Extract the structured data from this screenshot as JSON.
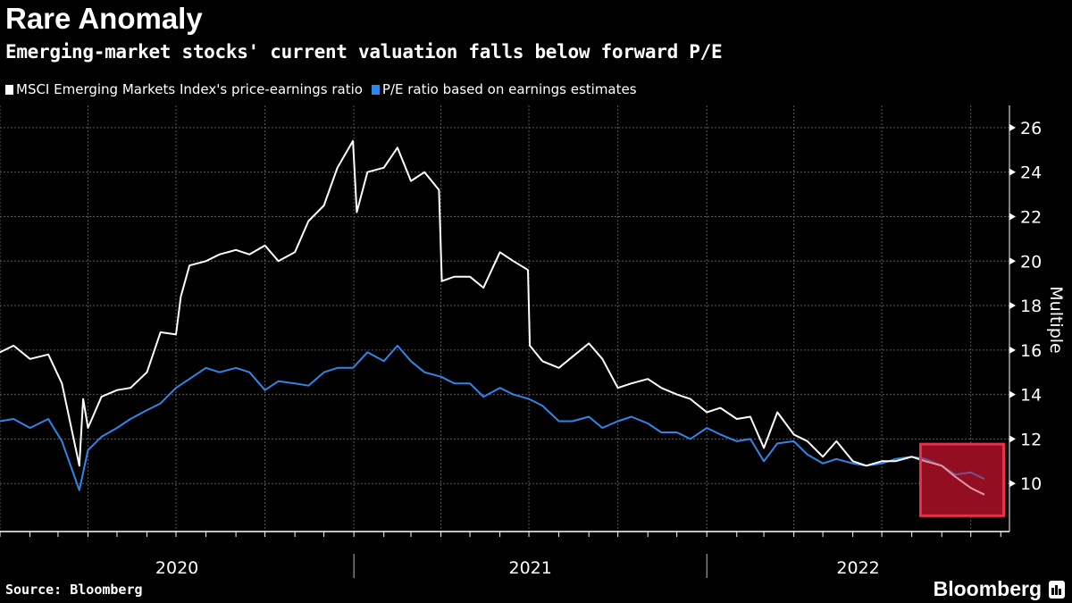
{
  "title": "Rare Anomaly",
  "subtitle": "Emerging-market stocks' current valuation falls below forward P/E",
  "source": "Source: Bloomberg",
  "logo": "Bloomberg",
  "colors": {
    "background": "#000000",
    "trailing": "#ffffff",
    "forward": "#2f86e8",
    "highlight_fill": "#6b0a14",
    "highlight_stroke": "#e8324a",
    "grid": "#666666"
  },
  "chart_data": {
    "type": "line",
    "title": "Rare Anomaly",
    "ylabel": "Multiple",
    "xlabel": "",
    "ylim": [
      8,
      27
    ],
    "xlim": [
      "2020-01-01",
      "2022-11-10"
    ],
    "y_ticks": [
      10,
      12,
      14,
      16,
      18,
      20,
      22,
      24,
      26
    ],
    "x_tick_labels": [
      "2020",
      "2021",
      "2022"
    ],
    "grid": true,
    "legend_placement": "top-left",
    "highlight": {
      "x": [
        "2022-08-10",
        "2022-11-04"
      ],
      "y": [
        8.55,
        11.77
      ]
    },
    "series": [
      {
        "name": "MSCI Emerging Markets Index's price-earnings ratio",
        "color": "#ffffff",
        "points": [
          [
            "2020-01-01",
            15.9
          ],
          [
            "2020-01-15",
            16.2
          ],
          [
            "2020-02-01",
            15.6
          ],
          [
            "2020-02-20",
            15.8
          ],
          [
            "2020-03-05",
            14.5
          ],
          [
            "2020-03-23",
            10.8
          ],
          [
            "2020-03-27",
            13.8
          ],
          [
            "2020-04-01",
            12.5
          ],
          [
            "2020-04-15",
            13.9
          ],
          [
            "2020-05-01",
            14.2
          ],
          [
            "2020-05-15",
            14.3
          ],
          [
            "2020-06-01",
            15.0
          ],
          [
            "2020-06-15",
            16.8
          ],
          [
            "2020-07-01",
            16.7
          ],
          [
            "2020-07-06",
            18.4
          ],
          [
            "2020-07-15",
            19.8
          ],
          [
            "2020-08-01",
            20.0
          ],
          [
            "2020-08-15",
            20.3
          ],
          [
            "2020-09-01",
            20.5
          ],
          [
            "2020-09-15",
            20.3
          ],
          [
            "2020-10-01",
            20.7
          ],
          [
            "2020-10-15",
            20.0
          ],
          [
            "2020-11-01",
            20.4
          ],
          [
            "2020-11-15",
            21.8
          ],
          [
            "2020-12-01",
            22.5
          ],
          [
            "2020-12-15",
            24.2
          ],
          [
            "2020-12-31",
            25.4
          ],
          [
            "2021-01-04",
            22.2
          ],
          [
            "2021-01-15",
            24.0
          ],
          [
            "2021-02-01",
            24.2
          ],
          [
            "2021-02-15",
            25.1
          ],
          [
            "2021-03-01",
            23.6
          ],
          [
            "2021-03-15",
            24.0
          ],
          [
            "2021-03-30",
            23.2
          ],
          [
            "2021-04-02",
            19.1
          ],
          [
            "2021-04-15",
            19.3
          ],
          [
            "2021-05-01",
            19.3
          ],
          [
            "2021-05-15",
            18.8
          ],
          [
            "2021-06-01",
            20.4
          ],
          [
            "2021-06-15",
            20.0
          ],
          [
            "2021-06-30",
            19.6
          ],
          [
            "2021-07-02",
            16.2
          ],
          [
            "2021-07-15",
            15.5
          ],
          [
            "2021-08-01",
            15.2
          ],
          [
            "2021-08-15",
            15.7
          ],
          [
            "2021-09-01",
            16.3
          ],
          [
            "2021-09-15",
            15.6
          ],
          [
            "2021-10-01",
            14.3
          ],
          [
            "2021-10-15",
            14.5
          ],
          [
            "2021-11-01",
            14.7
          ],
          [
            "2021-11-15",
            14.3
          ],
          [
            "2021-12-01",
            14.0
          ],
          [
            "2021-12-15",
            13.8
          ],
          [
            "2022-01-01",
            13.2
          ],
          [
            "2022-01-15",
            13.4
          ],
          [
            "2022-02-01",
            12.9
          ],
          [
            "2022-02-15",
            13.0
          ],
          [
            "2022-03-01",
            11.6
          ],
          [
            "2022-03-15",
            13.2
          ],
          [
            "2022-04-01",
            12.2
          ],
          [
            "2022-04-15",
            11.9
          ],
          [
            "2022-05-01",
            11.2
          ],
          [
            "2022-05-15",
            11.9
          ],
          [
            "2022-06-01",
            11.0
          ],
          [
            "2022-06-15",
            10.8
          ],
          [
            "2022-07-01",
            11.0
          ],
          [
            "2022-07-15",
            11.0
          ],
          [
            "2022-08-01",
            11.2
          ],
          [
            "2022-08-15",
            11.0
          ],
          [
            "2022-09-01",
            10.8
          ],
          [
            "2022-09-15",
            10.3
          ],
          [
            "2022-10-01",
            9.8
          ],
          [
            "2022-10-15",
            9.5
          ]
        ]
      },
      {
        "name": "P/E ratio based on earnings estimates",
        "color": "#2f86e8",
        "points": [
          [
            "2020-01-01",
            12.8
          ],
          [
            "2020-01-15",
            12.9
          ],
          [
            "2020-02-01",
            12.5
          ],
          [
            "2020-02-20",
            12.9
          ],
          [
            "2020-03-05",
            11.9
          ],
          [
            "2020-03-23",
            9.7
          ],
          [
            "2020-04-01",
            11.5
          ],
          [
            "2020-04-15",
            12.1
          ],
          [
            "2020-05-01",
            12.5
          ],
          [
            "2020-05-15",
            12.9
          ],
          [
            "2020-06-01",
            13.3
          ],
          [
            "2020-06-15",
            13.6
          ],
          [
            "2020-07-01",
            14.3
          ],
          [
            "2020-07-15",
            14.7
          ],
          [
            "2020-08-01",
            15.2
          ],
          [
            "2020-08-15",
            15.0
          ],
          [
            "2020-09-01",
            15.2
          ],
          [
            "2020-09-15",
            15.0
          ],
          [
            "2020-10-01",
            14.2
          ],
          [
            "2020-10-15",
            14.6
          ],
          [
            "2020-11-01",
            14.5
          ],
          [
            "2020-11-15",
            14.4
          ],
          [
            "2020-12-01",
            15.0
          ],
          [
            "2020-12-15",
            15.2
          ],
          [
            "2020-12-31",
            15.2
          ],
          [
            "2021-01-15",
            15.9
          ],
          [
            "2021-02-01",
            15.5
          ],
          [
            "2021-02-15",
            16.2
          ],
          [
            "2021-03-01",
            15.5
          ],
          [
            "2021-03-15",
            15.0
          ],
          [
            "2021-04-01",
            14.8
          ],
          [
            "2021-04-15",
            14.5
          ],
          [
            "2021-05-01",
            14.5
          ],
          [
            "2021-05-15",
            13.9
          ],
          [
            "2021-06-01",
            14.3
          ],
          [
            "2021-06-15",
            14.0
          ],
          [
            "2021-07-01",
            13.8
          ],
          [
            "2021-07-15",
            13.5
          ],
          [
            "2021-08-01",
            12.8
          ],
          [
            "2021-08-15",
            12.8
          ],
          [
            "2021-09-01",
            13.0
          ],
          [
            "2021-09-15",
            12.5
          ],
          [
            "2021-10-01",
            12.8
          ],
          [
            "2021-10-15",
            13.0
          ],
          [
            "2021-11-01",
            12.7
          ],
          [
            "2021-11-15",
            12.3
          ],
          [
            "2021-12-01",
            12.3
          ],
          [
            "2021-12-15",
            12.0
          ],
          [
            "2022-01-01",
            12.5
          ],
          [
            "2022-01-15",
            12.2
          ],
          [
            "2022-02-01",
            11.9
          ],
          [
            "2022-02-15",
            12.0
          ],
          [
            "2022-03-01",
            11.0
          ],
          [
            "2022-03-15",
            11.8
          ],
          [
            "2022-04-01",
            11.9
          ],
          [
            "2022-04-15",
            11.3
          ],
          [
            "2022-05-01",
            10.9
          ],
          [
            "2022-05-15",
            11.1
          ],
          [
            "2022-06-01",
            10.9
          ],
          [
            "2022-06-15",
            10.8
          ],
          [
            "2022-07-01",
            10.9
          ],
          [
            "2022-07-15",
            11.1
          ],
          [
            "2022-08-01",
            11.2
          ],
          [
            "2022-08-15",
            11.1
          ],
          [
            "2022-09-01",
            10.8
          ],
          [
            "2022-09-15",
            10.4
          ],
          [
            "2022-10-01",
            10.5
          ],
          [
            "2022-10-15",
            10.2
          ]
        ]
      }
    ]
  }
}
